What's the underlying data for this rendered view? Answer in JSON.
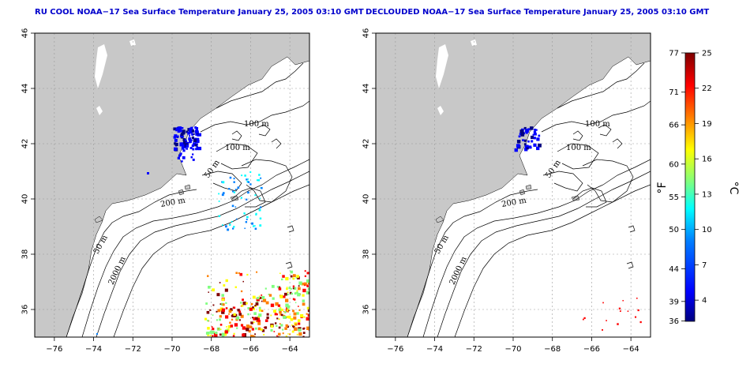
{
  "panels": [
    {
      "title": "RU COOL NOAA−17 Sea Surface Temperature January 25, 2005 03:10 GMT",
      "contour_labels": [
        "100 m",
        "100 m",
        "50 m",
        "200 m",
        "50 m",
        "2000 m"
      ]
    },
    {
      "title": "DECLOUDED NOAA−17 Sea Surface Temperature January 25, 2005 03:10 GMT",
      "contour_labels": [
        "100 m",
        "100 m",
        "50 m",
        "200 m",
        "50 m",
        "2000 m"
      ]
    }
  ],
  "map": {
    "lon_ticks": [
      "−76",
      "−74",
      "−72",
      "−70",
      "−68",
      "−66",
      "−64"
    ],
    "lat_ticks": [
      "36",
      "38",
      "40",
      "42",
      "44",
      "46"
    ],
    "lon_range": [
      -77,
      -63
    ],
    "lat_range": [
      35,
      46
    ],
    "land_color": "#c8c8c8",
    "water_color": "#ffffff"
  },
  "colorbar": {
    "f_label": "°F",
    "c_label": "°C",
    "f_ticks": [
      "77",
      "71",
      "66",
      "60",
      "55",
      "50",
      "44",
      "39",
      "36"
    ],
    "c_ticks": [
      "25",
      "22",
      "19",
      "16",
      "13",
      "10",
      "7",
      "4"
    ],
    "f_values": [
      77,
      71,
      66,
      60,
      55,
      50,
      44,
      39,
      36
    ],
    "c_values": [
      25,
      22,
      19,
      16,
      13,
      10,
      7,
      4
    ],
    "range_c": [
      2.2,
      25
    ],
    "colors": [
      "#00007f",
      "#0000ff",
      "#007fff",
      "#00ffff",
      "#7fff7f",
      "#ffff00",
      "#ff7f00",
      "#ff0000",
      "#7f0000"
    ]
  }
}
